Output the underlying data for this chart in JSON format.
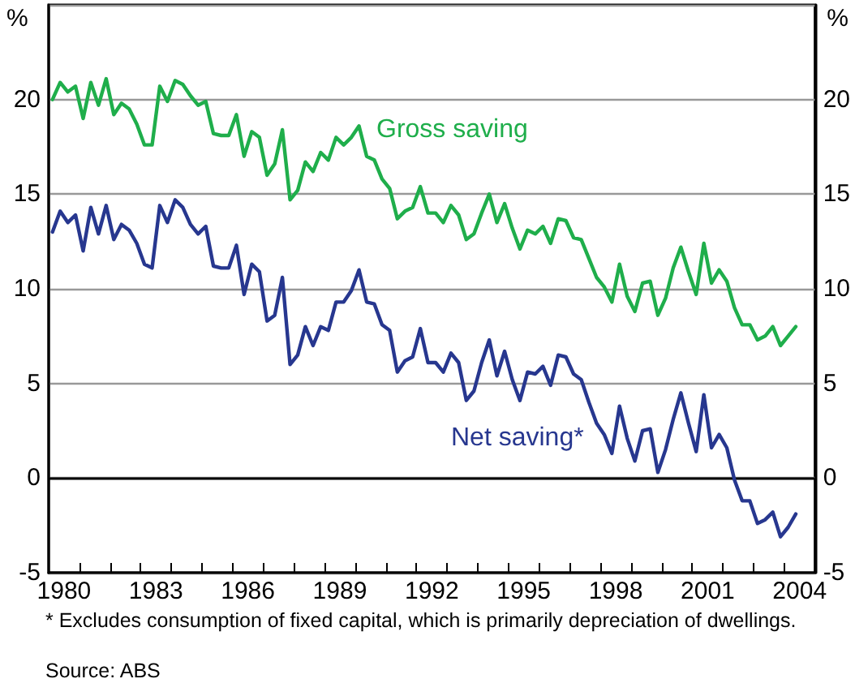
{
  "chart_data": {
    "type": "line",
    "ylabel": "%",
    "y2label": "%",
    "x": [
      1980.125,
      1980.375,
      1980.625,
      1980.875,
      1981.125,
      1981.375,
      1981.625,
      1981.875,
      1982.125,
      1982.375,
      1982.625,
      1982.875,
      1983.125,
      1983.375,
      1983.625,
      1983.875,
      1984.125,
      1984.375,
      1984.625,
      1984.875,
      1985.125,
      1985.375,
      1985.625,
      1985.875,
      1986.125,
      1986.375,
      1986.625,
      1986.875,
      1987.125,
      1987.375,
      1987.625,
      1987.875,
      1988.125,
      1988.375,
      1988.625,
      1988.875,
      1989.125,
      1989.375,
      1989.625,
      1989.875,
      1990.125,
      1990.375,
      1990.625,
      1990.875,
      1991.125,
      1991.375,
      1991.625,
      1991.875,
      1992.125,
      1992.375,
      1992.625,
      1992.875,
      1993.125,
      1993.375,
      1993.625,
      1993.875,
      1994.125,
      1994.375,
      1994.625,
      1994.875,
      1995.125,
      1995.375,
      1995.625,
      1995.875,
      1996.125,
      1996.375,
      1996.625,
      1996.875,
      1997.125,
      1997.375,
      1997.625,
      1997.875,
      1998.125,
      1998.375,
      1998.625,
      1998.875,
      1999.125,
      1999.375,
      1999.625,
      1999.875,
      2000.125,
      2000.375,
      2000.625,
      2000.875,
      2001.125,
      2001.375,
      2001.625,
      2001.875,
      2002.125,
      2002.375,
      2002.625,
      2002.875,
      2003.125,
      2003.375,
      2003.625,
      2003.875,
      2004.125,
      2004.375
    ],
    "series": [
      {
        "name": "Gross saving",
        "color": "#1fae4b",
        "values": [
          20.0,
          20.9,
          20.4,
          20.7,
          19.0,
          20.9,
          19.7,
          21.1,
          19.2,
          19.8,
          19.5,
          18.7,
          17.6,
          17.6,
          20.7,
          19.9,
          21.0,
          20.8,
          20.2,
          19.7,
          19.9,
          18.2,
          18.1,
          18.1,
          19.2,
          17.0,
          18.3,
          18.0,
          16.0,
          16.6,
          18.4,
          14.7,
          15.2,
          16.7,
          16.2,
          17.2,
          16.8,
          18.0,
          17.6,
          18.0,
          18.6,
          17.0,
          16.8,
          15.8,
          15.3,
          13.7,
          14.1,
          14.3,
          15.4,
          14.0,
          14.0,
          13.5,
          14.4,
          13.9,
          12.6,
          12.9,
          14.0,
          15.0,
          13.5,
          14.5,
          13.2,
          12.1,
          13.1,
          12.9,
          13.3,
          12.4,
          13.7,
          13.6,
          12.7,
          12.6,
          11.6,
          10.6,
          10.1,
          9.3,
          11.3,
          9.6,
          8.8,
          10.3,
          10.4,
          8.6,
          9.5,
          11.1,
          12.2,
          10.9,
          9.7,
          12.4,
          10.3,
          11.0,
          10.4,
          9.0,
          8.1,
          8.1,
          7.3,
          7.5,
          8.0,
          7.0,
          7.5,
          8.0
        ]
      },
      {
        "name": "Net saving*",
        "color": "#27378f",
        "values": [
          13.0,
          14.1,
          13.5,
          13.9,
          12.0,
          14.3,
          12.9,
          14.4,
          12.6,
          13.4,
          13.1,
          12.4,
          11.3,
          11.1,
          14.4,
          13.5,
          14.7,
          14.3,
          13.4,
          12.9,
          13.3,
          11.2,
          11.1,
          11.1,
          12.3,
          9.7,
          11.3,
          10.9,
          8.3,
          8.6,
          10.6,
          6.0,
          6.5,
          8.0,
          7.0,
          8.0,
          7.8,
          9.3,
          9.3,
          9.9,
          11.0,
          9.3,
          9.2,
          8.1,
          7.8,
          5.6,
          6.2,
          6.4,
          7.9,
          6.1,
          6.1,
          5.6,
          6.6,
          6.1,
          4.1,
          4.6,
          6.1,
          7.3,
          5.4,
          6.7,
          5.2,
          4.1,
          5.6,
          5.5,
          5.9,
          4.9,
          6.5,
          6.4,
          5.5,
          5.2,
          4.0,
          2.9,
          2.3,
          1.3,
          3.8,
          2.1,
          0.9,
          2.5,
          2.6,
          0.3,
          1.5,
          3.1,
          4.5,
          2.9,
          1.4,
          4.4,
          1.6,
          2.3,
          1.6,
          -0.1,
          -1.2,
          -1.2,
          -2.4,
          -2.2,
          -1.8,
          -3.1,
          -2.6,
          -1.9
        ]
      }
    ],
    "xlim": [
      1980,
      2005
    ],
    "xticks": [
      {
        "value": 1980.5,
        "label": "1980"
      },
      {
        "value": 1983.5,
        "label": "1983"
      },
      {
        "value": 1986.5,
        "label": "1986"
      },
      {
        "value": 1989.5,
        "label": "1989"
      },
      {
        "value": 1992.5,
        "label": "1992"
      },
      {
        "value": 1995.5,
        "label": "1995"
      },
      {
        "value": 1998.5,
        "label": "1998"
      },
      {
        "value": 2001.5,
        "label": "2001"
      },
      {
        "value": 2004.5,
        "label": "2004"
      },
      {
        "value": 1981,
        "label": null
      },
      {
        "value": 1982,
        "label": null
      },
      {
        "value": 1983,
        "label": null
      },
      {
        "value": 1984,
        "label": null
      },
      {
        "value": 1985,
        "label": null
      },
      {
        "value": 1986,
        "label": null
      },
      {
        "value": 1987,
        "label": null
      },
      {
        "value": 1988,
        "label": null
      },
      {
        "value": 1989,
        "label": null
      },
      {
        "value": 1990,
        "label": null
      },
      {
        "value": 1991,
        "label": null
      },
      {
        "value": 1992,
        "label": null
      },
      {
        "value": 1993,
        "label": null
      },
      {
        "value": 1994,
        "label": null
      },
      {
        "value": 1995,
        "label": null
      },
      {
        "value": 1996,
        "label": null
      },
      {
        "value": 1997,
        "label": null
      },
      {
        "value": 1998,
        "label": null
      },
      {
        "value": 1999,
        "label": null
      },
      {
        "value": 2000,
        "label": null
      },
      {
        "value": 2001,
        "label": null
      },
      {
        "value": 2002,
        "label": null
      },
      {
        "value": 2003,
        "label": null
      },
      {
        "value": 2004,
        "label": null
      }
    ],
    "ylim": [
      -5,
      25
    ],
    "yticks": [
      -5,
      0,
      5,
      10,
      15,
      20
    ],
    "y2lim": [
      -5,
      25
    ],
    "y2ticks": [
      -5,
      0,
      5,
      10,
      15,
      20
    ],
    "grid": "y",
    "legend": false,
    "marker": "none",
    "line_style": "solid",
    "ref_lines": [
      {
        "axis": "y",
        "value": 0,
        "color": "#000000"
      }
    ],
    "annotations": [
      "* Excludes consumption of fixed capital, which is primarily depreciation of dwellings.",
      "Source: ABS"
    ]
  }
}
